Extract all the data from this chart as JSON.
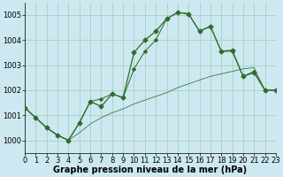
{
  "title": "Graphe pression niveau de la mer (hPa)",
  "background_color": "#cde8f0",
  "grid_color": "#a0ccbb",
  "line_color": "#2d6e2d",
  "x_min": 0,
  "x_max": 23,
  "y_min": 999.5,
  "y_max": 1005.5,
  "yticks": [
    1000,
    1001,
    1002,
    1003,
    1004,
    1005
  ],
  "xticks": [
    0,
    1,
    2,
    3,
    4,
    5,
    6,
    7,
    8,
    9,
    10,
    11,
    12,
    13,
    14,
    15,
    16,
    17,
    18,
    19,
    20,
    21,
    22,
    23
  ],
  "s1_x": [
    0,
    1,
    2,
    3,
    4,
    5,
    6,
    7,
    8,
    9,
    10,
    11,
    12,
    13,
    14,
    15,
    16,
    17,
    18,
    19,
    20,
    21,
    22,
    23
  ],
  "s1_y": [
    1001.3,
    1000.9,
    1000.5,
    1000.2,
    1000.0,
    1000.3,
    1000.65,
    1000.9,
    1001.1,
    1001.25,
    1001.45,
    1001.6,
    1001.75,
    1001.9,
    1002.1,
    1002.25,
    1002.4,
    1002.55,
    1002.65,
    1002.75,
    1002.85,
    1002.9,
    1002.0,
    1002.0
  ],
  "s2_x": [
    0,
    1,
    2,
    3,
    4,
    5,
    6,
    7,
    8,
    9,
    10,
    11,
    12,
    13,
    14,
    15,
    16,
    17,
    18,
    19,
    20,
    21,
    22,
    23
  ],
  "s2_y": [
    1001.3,
    1000.9,
    1000.5,
    1000.2,
    1000.0,
    1000.7,
    1001.55,
    1001.35,
    1001.85,
    1001.7,
    1003.5,
    1004.0,
    1004.35,
    1004.85,
    1005.1,
    1005.05,
    1004.35,
    1004.55,
    1003.55,
    1003.6,
    1002.55,
    1002.7,
    1002.0,
    1002.0
  ],
  "s3_x": [
    0,
    1,
    2,
    3,
    4,
    5,
    6,
    7,
    8,
    9,
    10,
    11,
    12,
    13,
    14,
    15,
    16,
    17,
    18,
    19,
    20,
    21,
    22,
    23
  ],
  "s3_y": [
    1001.3,
    1000.9,
    1000.5,
    1000.2,
    1000.0,
    1000.7,
    1001.55,
    1001.65,
    1001.85,
    1001.7,
    1002.85,
    1003.55,
    1004.0,
    1004.85,
    1005.1,
    1005.05,
    1004.35,
    1004.55,
    1003.55,
    1003.55,
    1002.55,
    1002.75,
    1002.0,
    1002.0
  ],
  "marker_size": 2.5,
  "line_width": 0.9,
  "title_fontsize": 7.0,
  "tick_fontsize": 6.0
}
